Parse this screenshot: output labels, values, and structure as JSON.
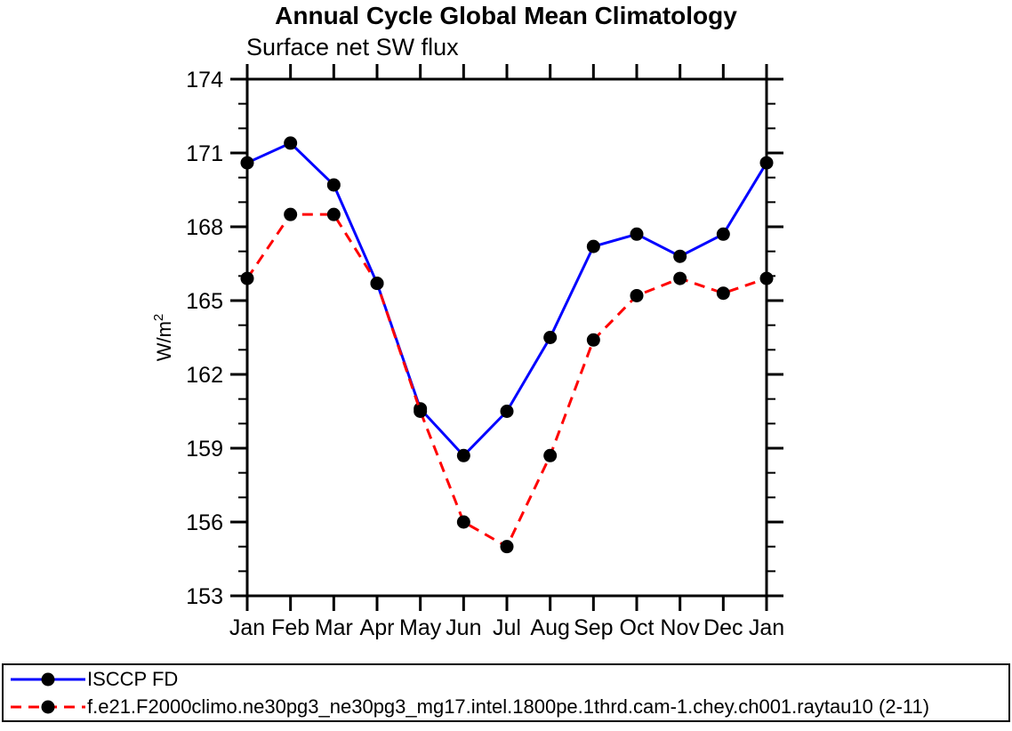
{
  "page": {
    "background": "#ffffff",
    "text_color": "#000000"
  },
  "chart_data": {
    "type": "line",
    "title": "Annual Cycle Global Mean Climatology",
    "subtitle": "Surface net SW flux",
    "ylabel_base": "W/m",
    "ylabel_sup": "2",
    "categories": [
      "Jan",
      "Feb",
      "Mar",
      "Apr",
      "May",
      "Jun",
      "Jul",
      "Aug",
      "Sep",
      "Oct",
      "Nov",
      "Dec",
      "Jan"
    ],
    "ylim": [
      153,
      174
    ],
    "ytick_major_step": 3,
    "ytick_minor_step": 1,
    "grid": false,
    "legend_position": "bottom",
    "axis_color": "#000000",
    "marker_color": "#000000",
    "series": [
      {
        "name": "ISCCP FD",
        "color": "#0000ff",
        "line_style": "solid",
        "values": [
          170.6,
          171.4,
          169.7,
          165.7,
          160.6,
          158.7,
          160.5,
          163.5,
          167.2,
          167.7,
          166.8,
          167.7,
          170.6
        ]
      },
      {
        "name": "f.e21.F2000climo.ne30pg3_ne30pg3_mg17.intel.1800pe.1thrd.cam-1.chey.ch001.raytau10 (2-11)",
        "color": "#ff0000",
        "line_style": "dashed",
        "values": [
          165.9,
          168.5,
          168.5,
          165.7,
          160.5,
          156.0,
          155.0,
          158.7,
          163.4,
          165.2,
          165.9,
          165.3,
          165.9
        ]
      }
    ]
  }
}
